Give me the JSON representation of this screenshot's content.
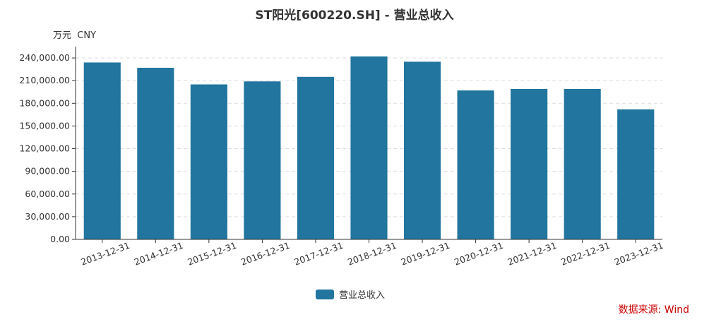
{
  "chart_data": {
    "type": "bar",
    "title": "ST阳光[600220.SH] - 营业总收入",
    "unit_label": "万元  CNY",
    "categories": [
      "2013-12-31",
      "2014-12-31",
      "2015-12-31",
      "2016-12-31",
      "2017-12-31",
      "2018-12-31",
      "2019-12-31",
      "2020-12-31",
      "2021-12-31",
      "2022-12-31",
      "2023-12-31"
    ],
    "series": [
      {
        "name": "营业总收入",
        "color": "#21759f",
        "values": [
          234000,
          227000,
          205000,
          209000,
          215000,
          242000,
          235000,
          197000,
          199000,
          199000,
          172000
        ]
      }
    ],
    "yticks": [
      "0.00",
      "30,000.00",
      "60,000.00",
      "90,000.00",
      "120,000.00",
      "150,000.00",
      "180,000.00",
      "210,000.00",
      "240,000.00"
    ],
    "ylim": [
      0,
      255000
    ],
    "grid": true,
    "legend_position": "bottom-center"
  },
  "source": "数据来源: Wind"
}
